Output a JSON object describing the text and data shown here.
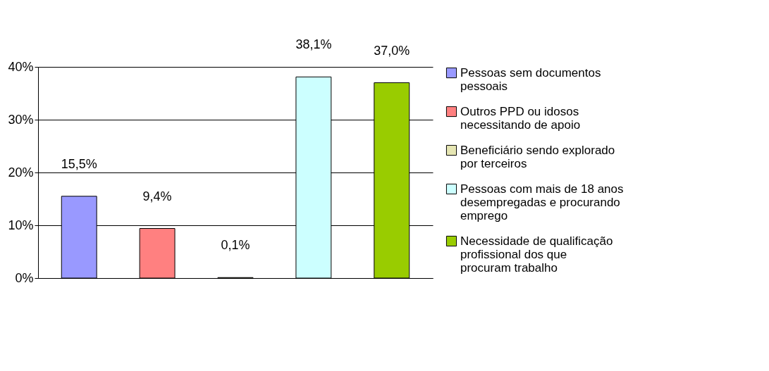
{
  "chart_data": {
    "type": "bar",
    "categories": [
      null,
      null,
      null,
      null,
      null
    ],
    "series": [
      {
        "name": "Pessoas sem documentos pessoais",
        "color": "#9999ff",
        "values": [
          15.5,
          null,
          null,
          null,
          null
        ],
        "value_labels": [
          "15,5%",
          null,
          null,
          null,
          null
        ]
      },
      {
        "name": "Outros PPD ou idosos necessitando de apoio",
        "color": "#ff8080",
        "values": [
          null,
          9.4,
          null,
          null,
          null
        ],
        "value_labels": [
          null,
          "9,4%",
          null,
          null,
          null
        ]
      },
      {
        "name": "Beneficiário sendo explorado por terceiros",
        "color": "#e6e6b3",
        "values": [
          null,
          null,
          0.1,
          null,
          null
        ],
        "value_labels": [
          null,
          null,
          "0,1%",
          null,
          null
        ]
      },
      {
        "name": "Pessoas com mais de 18 anos desempregadas e procurando emprego",
        "color": "#ccffff",
        "values": [
          null,
          null,
          null,
          38.1,
          null
        ],
        "value_labels": [
          null,
          null,
          null,
          "38,1%",
          null
        ]
      },
      {
        "name": "Necessidade de qualificação profissional dos que procuram trabalho",
        "color": "#99cc00",
        "values": [
          null,
          null,
          null,
          null,
          37.0
        ],
        "value_labels": [
          null,
          null,
          null,
          null,
          "37,0%"
        ]
      }
    ],
    "ylim": [
      0,
      40
    ],
    "yticks": [
      {
        "value": 0,
        "label": "0%"
      },
      {
        "value": 10,
        "label": "10%"
      },
      {
        "value": 20,
        "label": "20%"
      },
      {
        "value": 30,
        "label": "30%"
      },
      {
        "value": 40,
        "label": "40%"
      }
    ],
    "grid": "y",
    "legend": "right",
    "tick_labels": "y"
  }
}
